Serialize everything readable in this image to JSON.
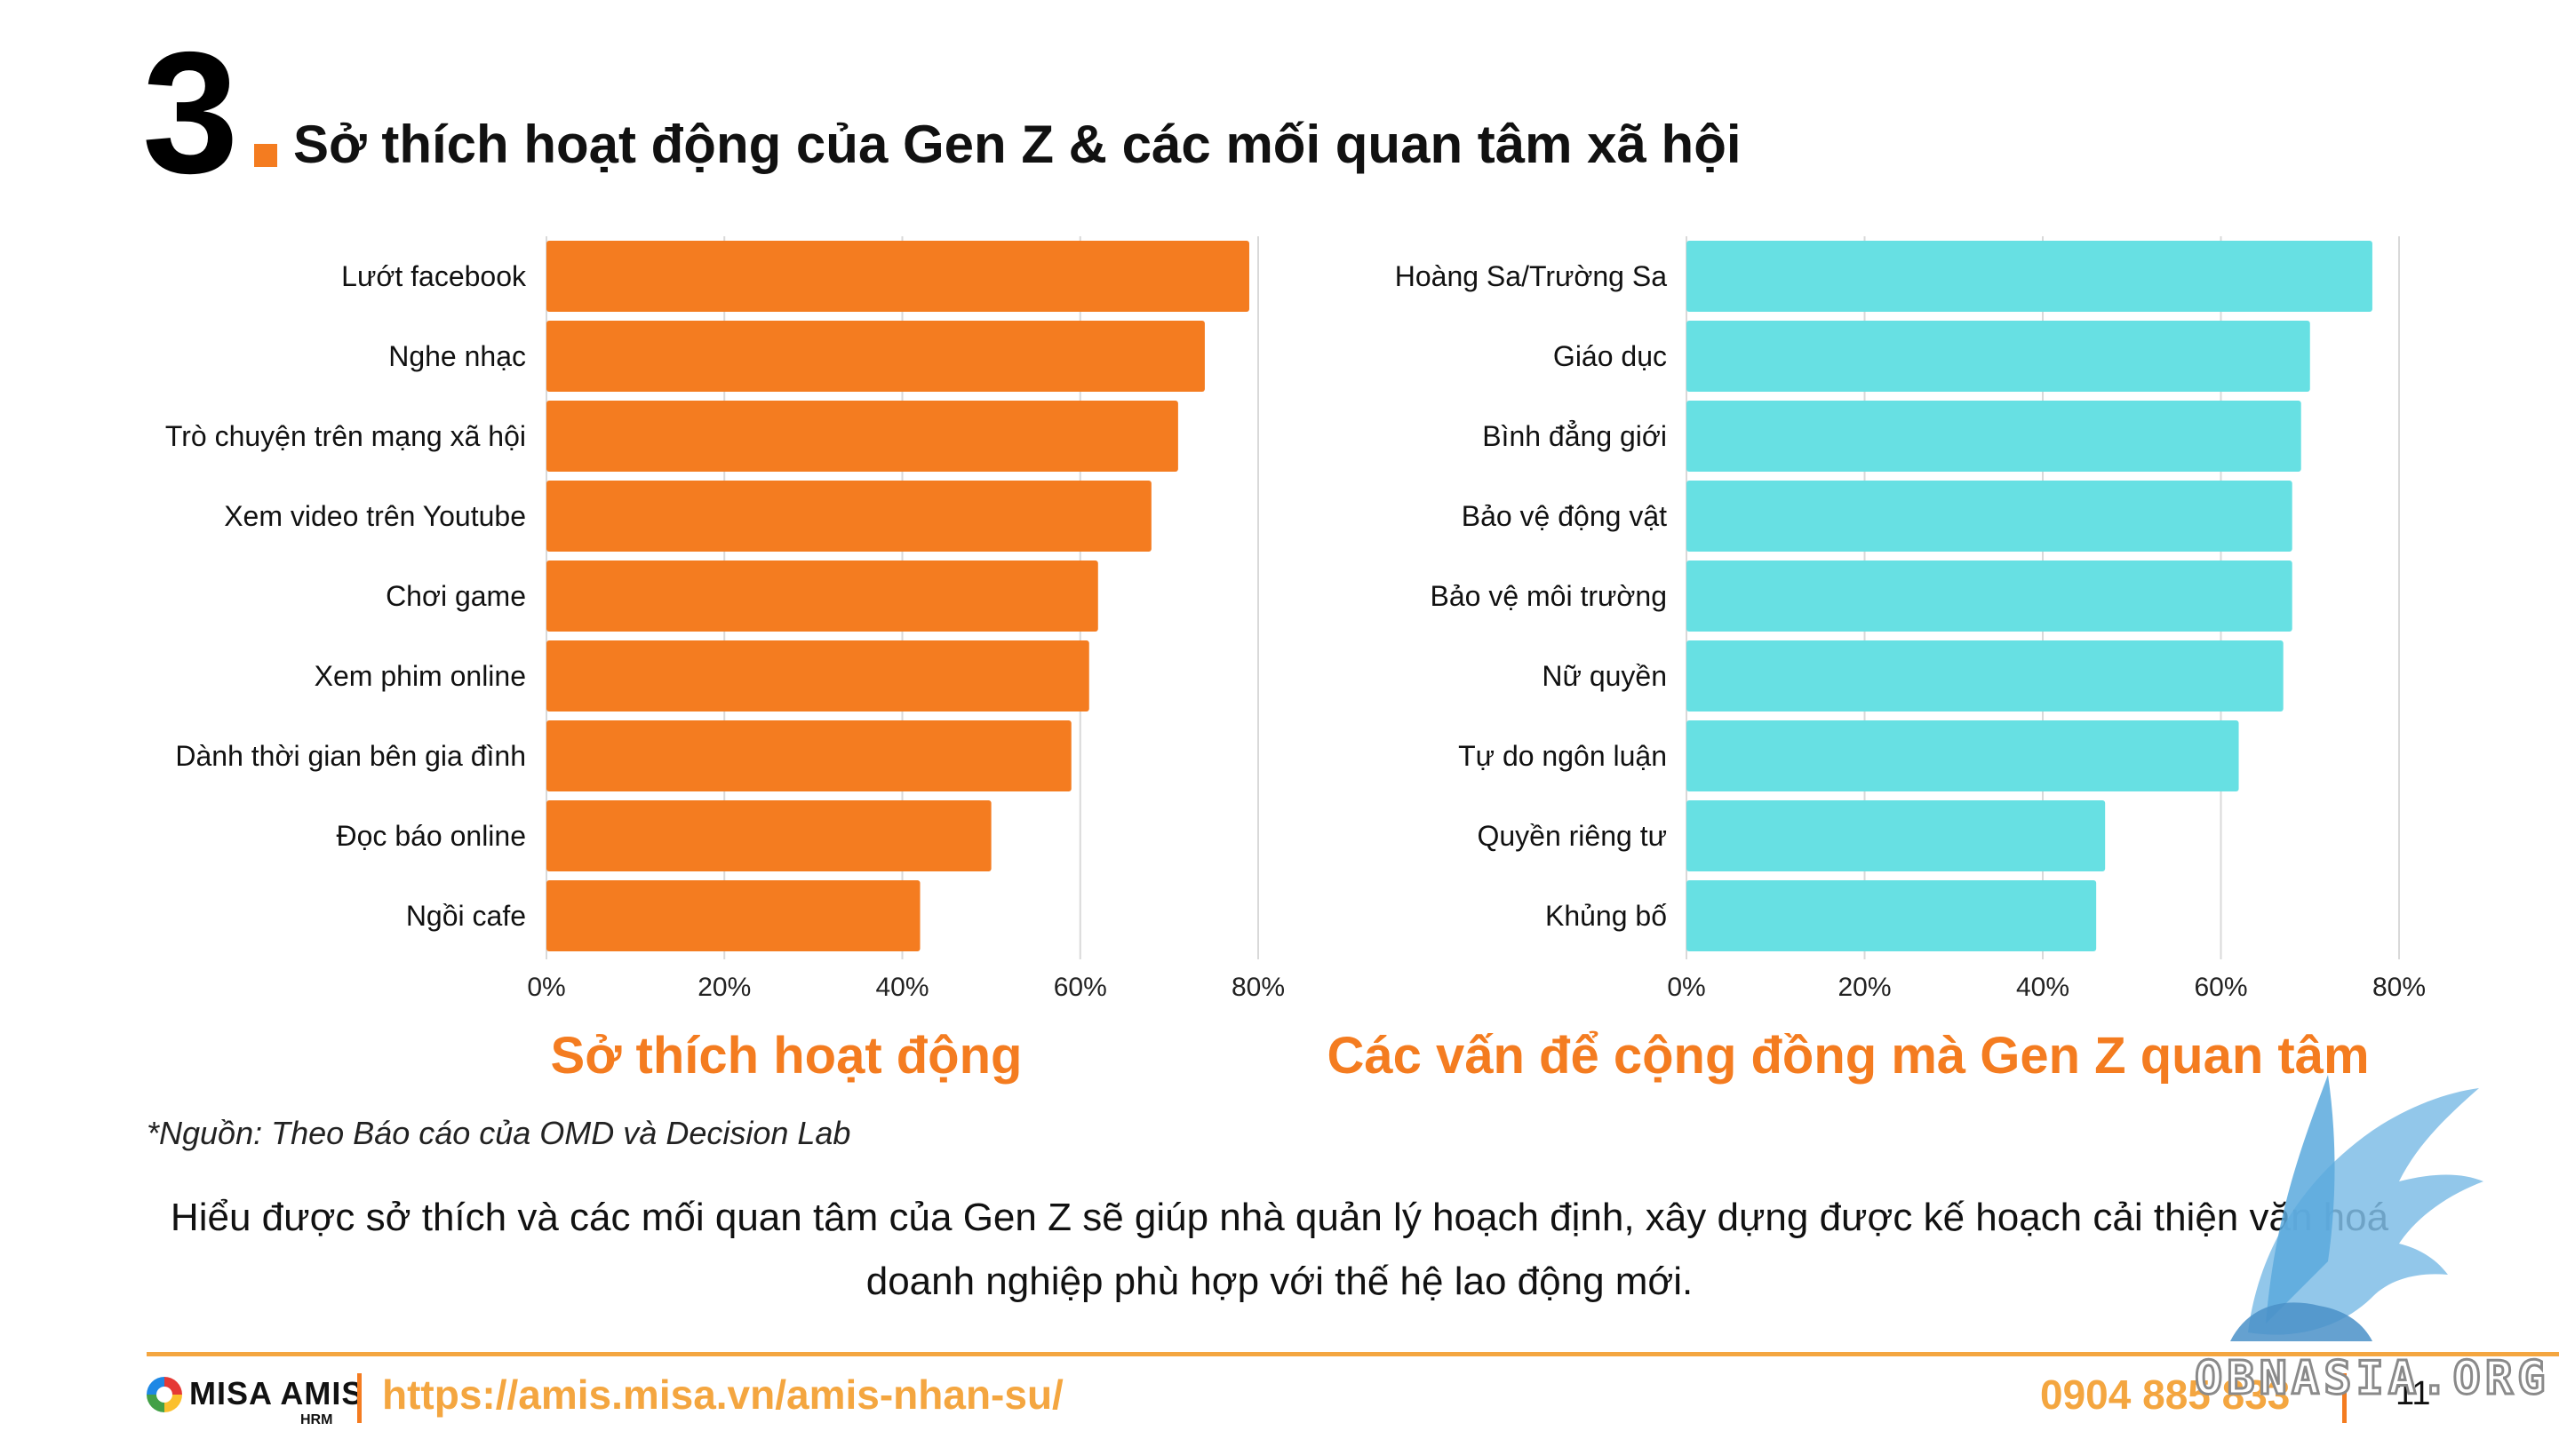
{
  "header": {
    "number": "3",
    "title": "Sở thích hoạt động của Gen Z & các mối quan tâm xã hội",
    "accent_color": "#f47c20"
  },
  "chart_data": [
    {
      "type": "bar",
      "orientation": "horizontal",
      "title": "Sở thích hoạt động",
      "categories": [
        "Lướt facebook",
        "Nghe nhạc",
        "Trò chuyện trên mạng xã hội",
        "Xem video trên Youtube",
        "Chơi game",
        "Xem phim online",
        "Dành thời gian bên gia đình",
        "Đọc báo online",
        "Ngồi cafe"
      ],
      "values": [
        79,
        74,
        71,
        68,
        62,
        61,
        59,
        50,
        42
      ],
      "xlim": [
        0,
        80
      ],
      "ticks": [
        0,
        20,
        40,
        60,
        80
      ],
      "tick_labels": [
        "0%",
        "20%",
        "40%",
        "60%",
        "80%"
      ],
      "grid": "vertical",
      "color": "#f47c20"
    },
    {
      "type": "bar",
      "orientation": "horizontal",
      "title": "Các vấn để cộng đồng mà Gen Z quan tâm",
      "categories": [
        "Hoàng Sa/Trường Sa",
        "Giáo dục",
        "Bình đẳng giới",
        "Bảo vệ động vật",
        "Bảo vệ môi trường",
        "Nữ quyền",
        "Tự do ngôn luận",
        "Quyền riêng tư",
        "Khủng bố"
      ],
      "values": [
        77,
        70,
        69,
        68,
        68,
        67,
        62,
        47,
        46
      ],
      "xlim": [
        0,
        80
      ],
      "ticks": [
        0,
        20,
        40,
        60,
        80
      ],
      "tick_labels": [
        "0%",
        "20%",
        "40%",
        "60%",
        "80%"
      ],
      "grid": "vertical",
      "color": "#67e0e3"
    }
  ],
  "source_note": "*Nguồn: Theo Báo cáo  của OMD và Decision Lab",
  "body_text": "Hiểu được sở thích và các mối quan tâm của Gen Z sẽ giúp nhà quản lý hoạch định, xây dựng được kế hoạch cải thiện văn hoá doanh nghiệp phù hợp với thế hệ lao động mới.",
  "footer": {
    "logo_text": "MISA AMIS",
    "logo_sub": "HRM",
    "url": "https://amis.misa.vn/amis-nhan-su/",
    "phone": "0904 885 833",
    "page_number": "11",
    "watermark": "OBNASIA.ORG"
  }
}
